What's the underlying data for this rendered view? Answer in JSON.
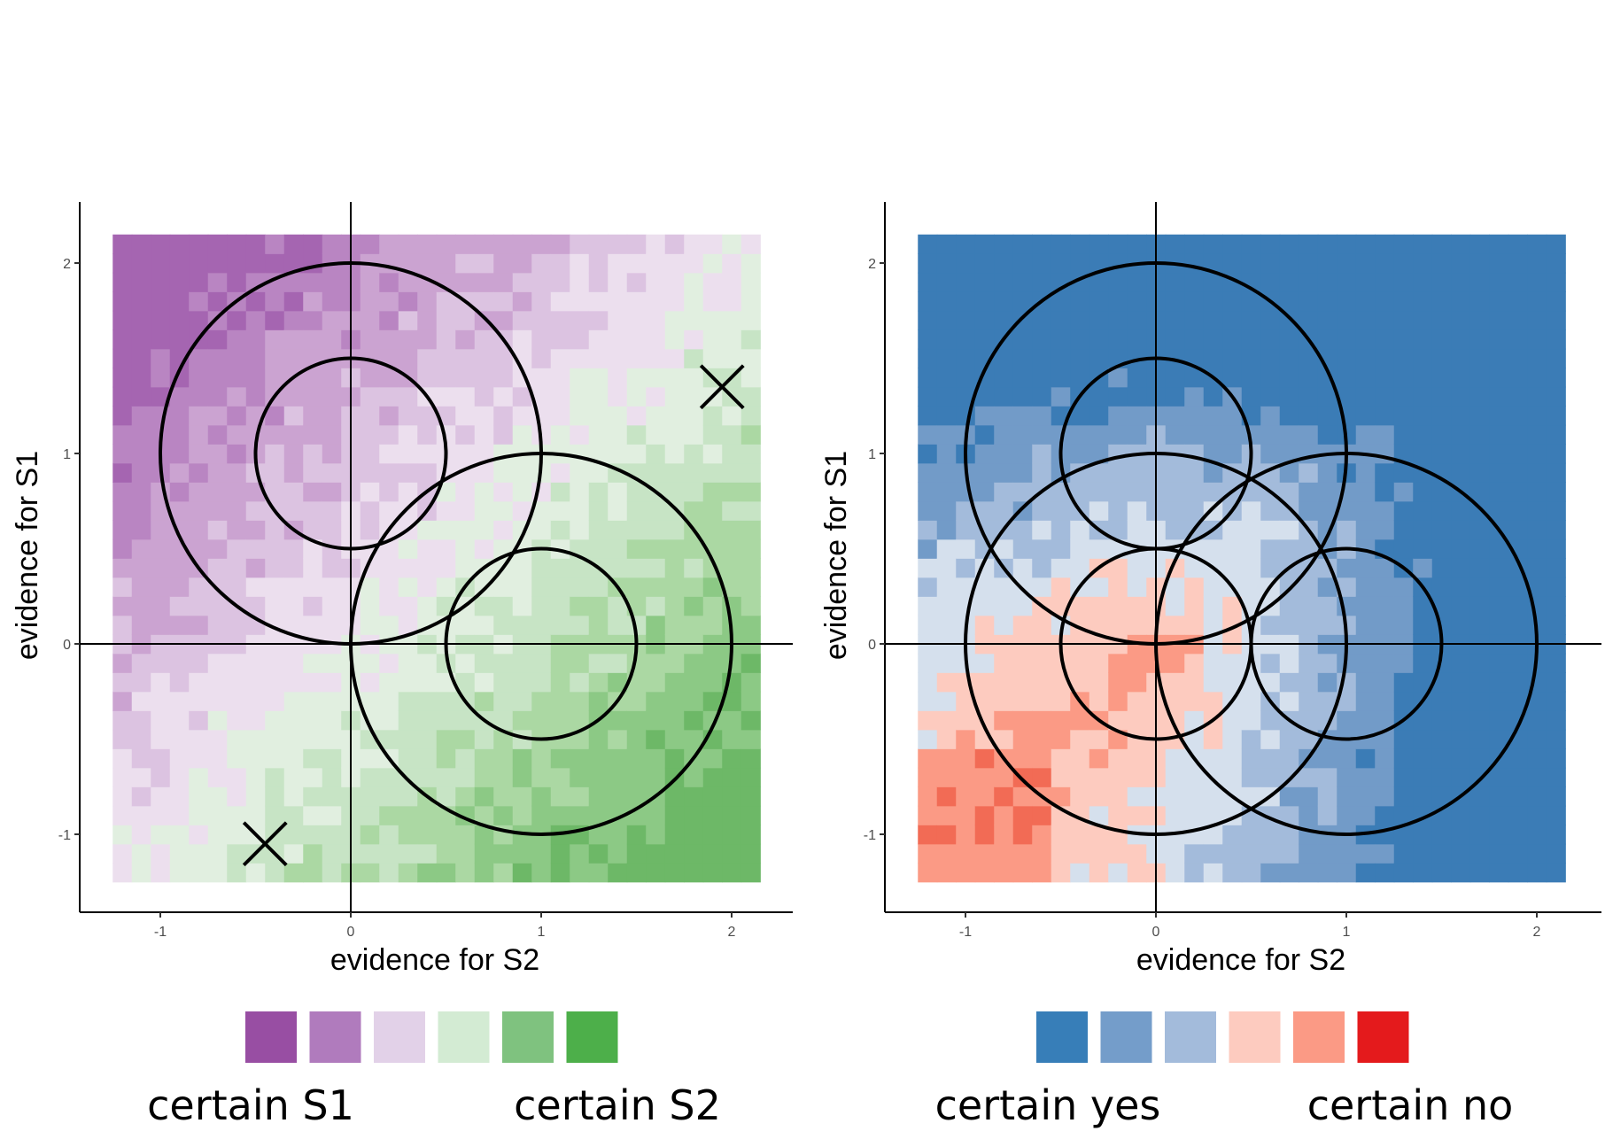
{
  "chart_data": [
    {
      "type": "heatmap",
      "xlabel": "evidence for S2",
      "ylabel": "evidence for S1",
      "xlim": [
        -1.25,
        2.15
      ],
      "ylim": [
        -1.25,
        2.15
      ],
      "x_ticks": [
        "-1",
        "0",
        "1",
        "2"
      ],
      "y_ticks": [
        "-1",
        "0",
        "1",
        "2"
      ],
      "grid": false,
      "legend": {
        "placement": "bottom",
        "swatches": [
          "#984ea3",
          "#b07bbd",
          "#e2d1e8",
          "#d3ebd3",
          "#7fc27f",
          "#4daf4a"
        ],
        "left_label": "certain S1",
        "right_label": "certain S2"
      },
      "levels": [
        {
          "level": 0,
          "color": "#a565b1"
        },
        {
          "level": 1,
          "color": "#b985c2"
        },
        {
          "level": 2,
          "color": "#cba3d1"
        },
        {
          "level": 3,
          "color": "#dcc3e1"
        },
        {
          "level": 4,
          "color": "#ecdfee"
        },
        {
          "level": 5,
          "color": "#e1efe0"
        },
        {
          "level": 6,
          "color": "#c7e4c5"
        },
        {
          "level": 7,
          "color": "#abd8a3"
        },
        {
          "level": 8,
          "color": "#8cc985"
        },
        {
          "level": 9,
          "color": "#6db867"
        }
      ],
      "heatmap_description": "confidence level on a 0.1 grid, increasing with (evidence for S2 - evidence for S1)",
      "circles": [
        {
          "center": [
            0,
            1
          ],
          "radius": 1
        },
        {
          "center": [
            0,
            1
          ],
          "radius": 0.5
        },
        {
          "center": [
            1,
            0
          ],
          "radius": 1
        },
        {
          "center": [
            1,
            0
          ],
          "radius": 0.5
        }
      ],
      "markers": [
        {
          "symbol": "x",
          "x": -0.45,
          "y": -1.05
        },
        {
          "symbol": "x",
          "x": 1.95,
          "y": 1.35
        }
      ]
    },
    {
      "type": "heatmap",
      "xlabel": "evidence for S2",
      "ylabel": "evidence for S1",
      "xlim": [
        -1.25,
        2.15
      ],
      "ylim": [
        -1.25,
        2.15
      ],
      "x_ticks": [
        "-1",
        "0",
        "1",
        "2"
      ],
      "y_ticks": [
        "-1",
        "0",
        "1",
        "2"
      ],
      "grid": false,
      "legend": {
        "placement": "bottom",
        "swatches": [
          "#377eb8",
          "#749dca",
          "#a3bbdb",
          "#fdcbbf",
          "#fb9a85",
          "#e41a1c"
        ],
        "left_label": "certain yes",
        "right_label": "certain no"
      },
      "levels": [
        {
          "level": 0,
          "color": "#3b7cb6"
        },
        {
          "level": 1,
          "color": "#729bc8"
        },
        {
          "level": 2,
          "color": "#a3bbdb"
        },
        {
          "level": 3,
          "color": "#d5e0ed"
        },
        {
          "level": 4,
          "color": "#fdcbbf"
        },
        {
          "level": 5,
          "color": "#fb9a85"
        },
        {
          "level": 6,
          "color": "#f26b55"
        }
      ],
      "heatmap_description": "confidence level on a 0.1 grid, yes when evidence is large for either stimulus, no near the origin",
      "circles": [
        {
          "center": [
            0,
            1
          ],
          "radius": 1
        },
        {
          "center": [
            0,
            1
          ],
          "radius": 0.5
        },
        {
          "center": [
            1,
            0
          ],
          "radius": 1
        },
        {
          "center": [
            1,
            0
          ],
          "radius": 0.5
        },
        {
          "center": [
            0,
            0
          ],
          "radius": 1
        },
        {
          "center": [
            0,
            0
          ],
          "radius": 0.5
        }
      ],
      "markers": []
    }
  ]
}
